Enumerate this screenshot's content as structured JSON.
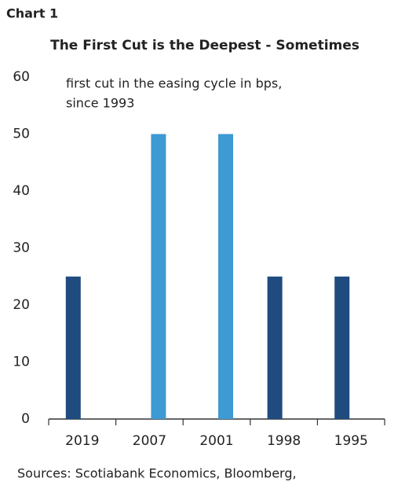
{
  "chart_data": {
    "type": "bar",
    "label": "Chart 1",
    "title": "The First Cut is the Deepest - Sometimes",
    "annotation": [
      "first cut in the easing cycle in bps,",
      "since 1993"
    ],
    "categories": [
      "2019",
      "2007",
      "2001",
      "1998",
      "1995"
    ],
    "series": [
      {
        "color": "#1f4b7f",
        "values": [
          25,
          null,
          null,
          25,
          25
        ]
      },
      {
        "color": "#3d9ad2",
        "values": [
          null,
          50,
          50,
          null,
          null
        ]
      }
    ],
    "ylim": [
      0,
      60
    ],
    "yticks": [
      0,
      10,
      20,
      30,
      40,
      50,
      60
    ],
    "source": "Sources: Scotiabank Economics, Bloomberg,"
  }
}
